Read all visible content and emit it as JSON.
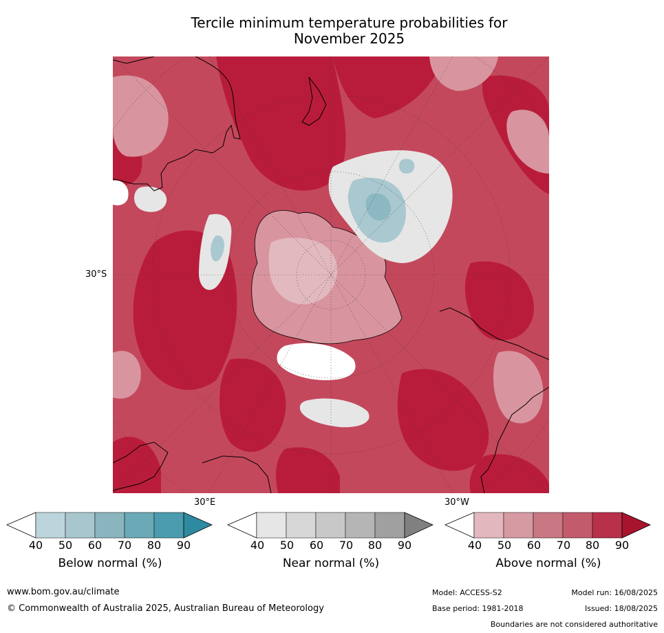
{
  "title": {
    "line1": "Tercile minimum temperature probabilities for",
    "line2": "November 2025"
  },
  "map": {
    "projection": "south polar stereographic",
    "lat_label_30s": "30°S",
    "lon_label_30e": "30°E",
    "lon_label_30w": "30°W",
    "colors": {
      "ocean_base": "#c4485c",
      "above_40": "#e3b9c0",
      "above_50": "#d8959f",
      "above_60": "#cd717f",
      "above_70": "#c45264",
      "above_80": "#b91c3a",
      "above_90": "#a8102c",
      "near_40": "#e6e6e6",
      "below_50": "#a9c8d0",
      "below_60": "#8cb8c2",
      "white": "#ffffff",
      "coastline": "#000000",
      "graticule": "#333333"
    }
  },
  "colorbars": [
    {
      "label": "Below normal (%)",
      "ticks": [
        "40",
        "50",
        "60",
        "70",
        "80",
        "90"
      ],
      "colors": [
        "#ffffff",
        "#bcd5dc",
        "#a7c6cd",
        "#8bb5be",
        "#6aa9b6",
        "#4a9cae",
        "#2e8aa0"
      ]
    },
    {
      "label": "Near normal (%)",
      "ticks": [
        "40",
        "50",
        "60",
        "70",
        "80",
        "90"
      ],
      "colors": [
        "#ffffff",
        "#e6e6e6",
        "#d7d7d7",
        "#c8c8c8",
        "#b5b5b5",
        "#a0a0a0",
        "#808080"
      ]
    },
    {
      "label": "Above normal (%)",
      "ticks": [
        "40",
        "50",
        "60",
        "70",
        "80",
        "90"
      ],
      "colors": [
        "#ffffff",
        "#e2b7bd",
        "#d59aa2",
        "#c97782",
        "#c25c6c",
        "#b8304a",
        "#a8142e"
      ]
    }
  ],
  "footer": {
    "website": "www.bom.gov.au/climate",
    "copyright": "© Commonwealth of Australia 2025, Australian Bureau of Meteorology",
    "model": "Model: ACCESS-S2",
    "base_period": "Base period: 1981-2018",
    "model_run": "Model run: 16/08/2025",
    "issued": "Issued: 18/08/2025",
    "disclaimer": "Boundaries are not considered authoritative"
  }
}
